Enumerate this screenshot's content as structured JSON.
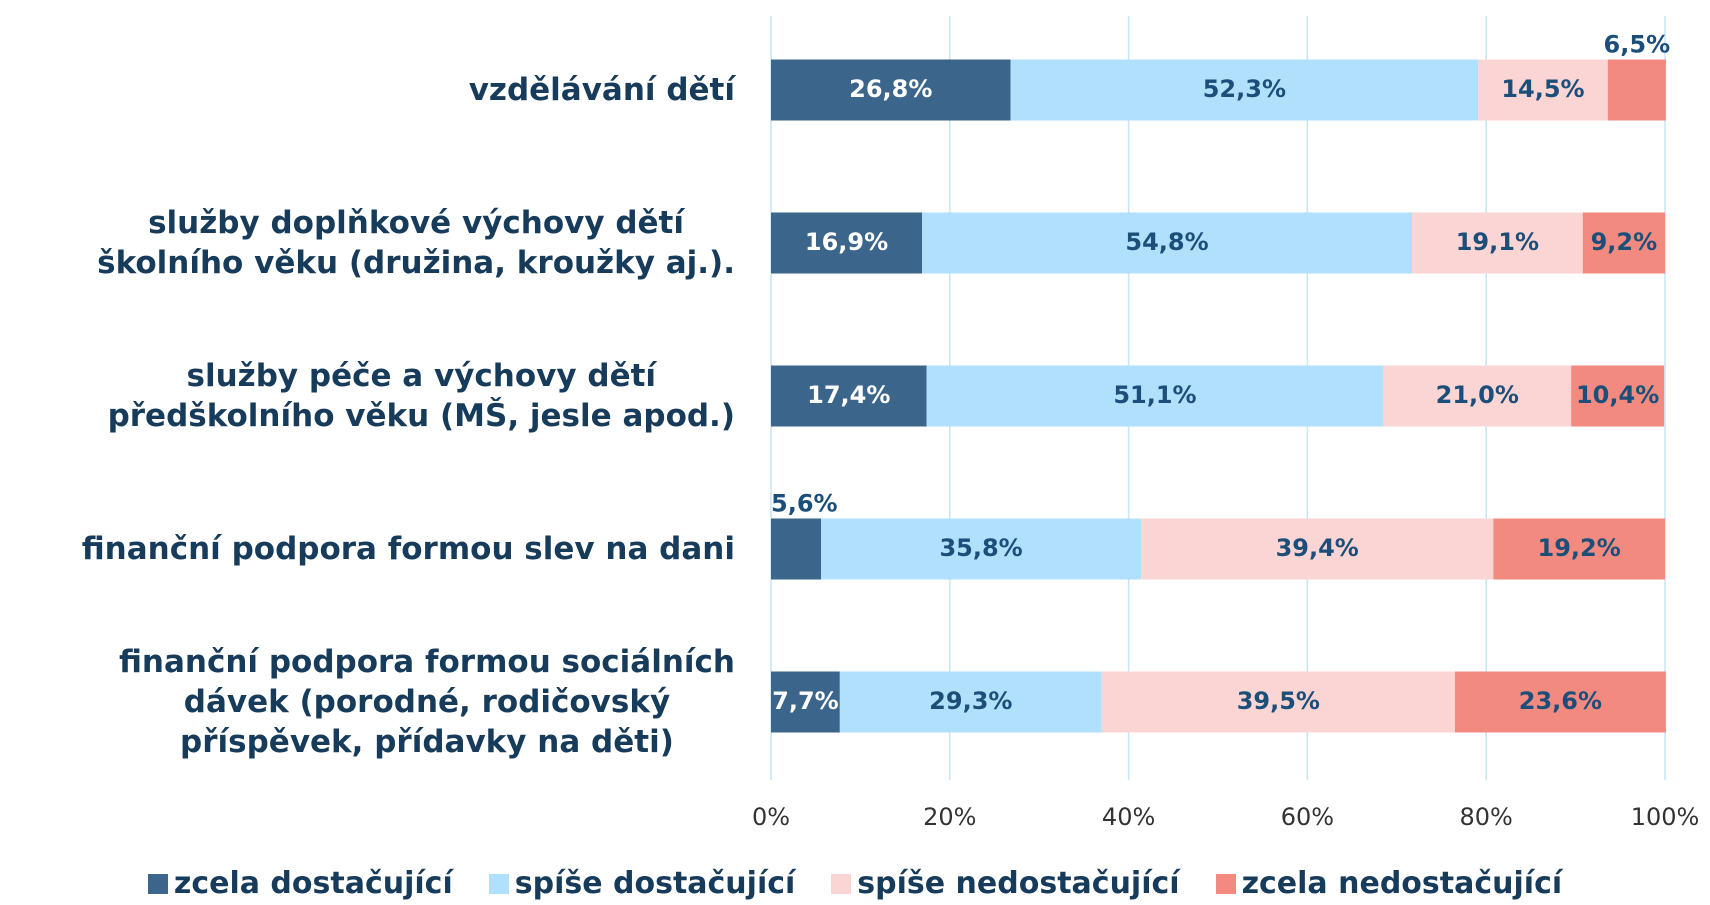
{
  "chart_data": {
    "type": "stacked_barh",
    "categories": [
      "vzdělávání dětí",
      "služby doplňkové výchovy dětí\nškolního věku (družina, kroužky aj.).",
      "služby péče a výchovy dětí\npředškolního věku (MŠ, jesle apod.)",
      "finanční podpora formou slev na dani",
      "finanční podpora formou sociálních\ndávek (porodné, rodičovský\npříspěvek, přídavky na děti)"
    ],
    "series": [
      {
        "name": "zcela dostačující",
        "color": "#3b658a",
        "values": [
          26.8,
          16.9,
          17.4,
          5.6,
          7.7
        ],
        "value_labels": [
          "26,8%",
          "16,9%",
          "17,4%",
          "5,6%",
          "7,7%"
        ]
      },
      {
        "name": "spíše dostačující",
        "color": "#b0e0fb",
        "values": [
          52.3,
          54.8,
          51.1,
          35.8,
          29.3
        ],
        "value_labels": [
          "52,3%",
          "54,8%",
          "51,1%",
          "35,8%",
          "29,3%"
        ]
      },
      {
        "name": "spíše nedostačující",
        "color": "#fbd5d3",
        "values": [
          14.5,
          19.1,
          21.0,
          39.4,
          39.5
        ],
        "value_labels": [
          "14,5%",
          "19,1%",
          "21,0%",
          "39,4%",
          "39,5%"
        ]
      },
      {
        "name": "zcela nedostačující",
        "color": "#f28a80",
        "values": [
          6.5,
          9.2,
          10.4,
          19.2,
          23.6
        ],
        "value_labels": [
          "6,5%",
          "9,2%",
          "10,4%",
          "19,2%",
          "23,6%"
        ]
      }
    ],
    "xlim": [
      0,
      100
    ],
    "xticks": [
      {
        "value": 0,
        "label": "0%"
      },
      {
        "value": 20,
        "label": "20%"
      },
      {
        "value": 40,
        "label": "40%"
      },
      {
        "value": 60,
        "label": "60%"
      },
      {
        "value": 80,
        "label": "80%"
      },
      {
        "value": 100,
        "label": "100%"
      }
    ],
    "grid": true,
    "legend": "bottom"
  }
}
